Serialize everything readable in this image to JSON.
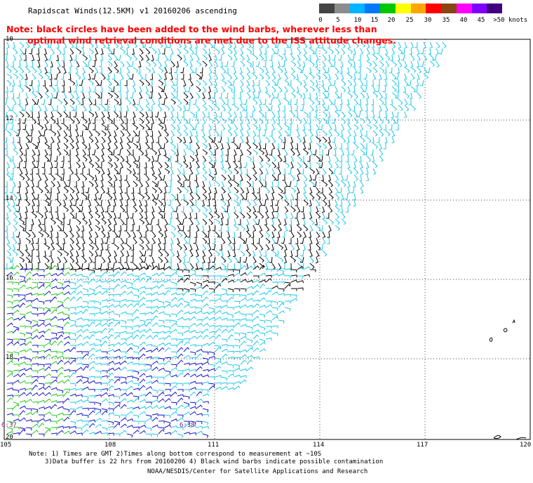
{
  "title": "Rapidscat Winds(12.5KM) v1 20160206 ascending",
  "note": {
    "line1": "Note: black circles have been added to the wind barbs, wherever less than",
    "line2": "optimal wind retrieval conditions are met due to the ISS attitude changes."
  },
  "legend": {
    "labels": [
      "0",
      "5",
      "10",
      "15",
      "20",
      "25",
      "30",
      "35",
      "40",
      "45",
      ">50 knots"
    ],
    "colors": [
      "#444444",
      "#8c8c8c",
      "#00b4ff",
      "#0078ff",
      "#00c800",
      "#ffff00",
      "#ffa500",
      "#ff0000",
      "#8b4513",
      "#ff00ff",
      "#7f00ff",
      "#400080"
    ]
  },
  "map": {
    "lat_labels": [
      "10",
      "12",
      "14",
      "16",
      "18",
      "20"
    ],
    "lon_labels": [
      "105",
      "108",
      "111",
      "114",
      "117",
      "120"
    ],
    "time_labels": [
      "6:37",
      "6:38"
    ]
  },
  "footer": {
    "line1": "Note: 1) Times are GMT 2)Times along bottom correspond to measurement at ~10S",
    "line2": "3)Data buffer is 22 hrs from 20160206 4) Black wind barbs indicate possible contamination",
    "line3": "NOAA/NESDIS/Center for Satellite Applications and Research"
  }
}
